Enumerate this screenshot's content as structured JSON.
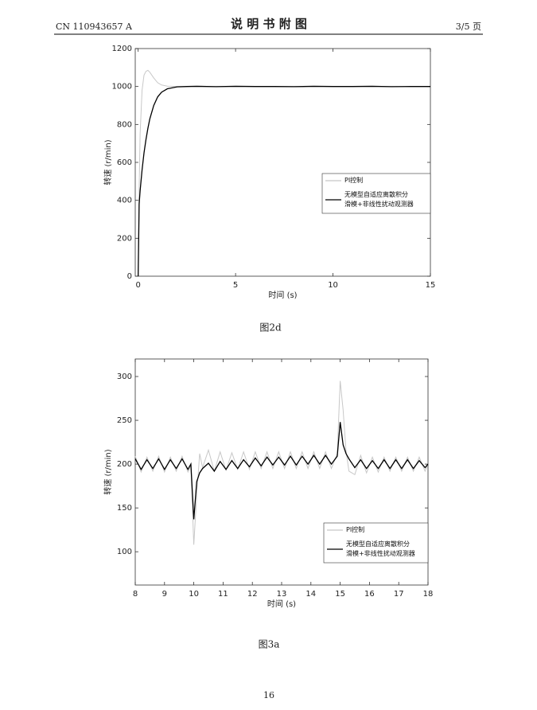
{
  "header": {
    "number": "CN 110943657 A",
    "title": "说 明 书 附 图",
    "page": "3/5 页"
  },
  "chart_data": [
    {
      "type": "line",
      "xlabel": "时间 (s)",
      "ylabel": "转速 (r/min)",
      "x": [
        0,
        0.05,
        0.1,
        0.2,
        0.3,
        0.4,
        0.5,
        0.6,
        0.8,
        1,
        1.2,
        1.5,
        2,
        2.5,
        3,
        4,
        5,
        6,
        7,
        8,
        9,
        10,
        11,
        12,
        13,
        14,
        15
      ],
      "series": [
        {
          "name": "PI控制",
          "color": "#c8c8c8",
          "values": [
            0,
            450,
            750,
            980,
            1060,
            1080,
            1085,
            1075,
            1045,
            1020,
            1008,
            1002,
            1000,
            1000,
            1000,
            1000,
            1000,
            1000,
            1000,
            1000,
            1000,
            1000,
            1000,
            1000,
            1000,
            1000,
            1000
          ]
        },
        {
          "name": "无模型自适应离散积分\n滑模+非线性扰动观测器",
          "color": "#000000",
          "values": [
            0,
            380,
            450,
            560,
            650,
            720,
            780,
            830,
            900,
            945,
            970,
            988,
            998,
            1000,
            1001,
            999,
            1001,
            1000,
            1000,
            999,
            1001,
            1000,
            1000,
            1001,
            999,
            1000,
            1000
          ]
        }
      ],
      "xlim": [
        -0.15,
        15
      ],
      "xticks": [
        0,
        5,
        10,
        15
      ],
      "ylim": [
        0,
        1200
      ],
      "yticks": [
        0,
        200,
        400,
        600,
        800,
        1000,
        1200
      ],
      "legend": "right"
    },
    {
      "type": "line",
      "xlabel": "时间 (s)",
      "ylabel": "转速 (r/min)",
      "x": [
        8,
        8.2,
        8.4,
        8.6,
        8.8,
        9,
        9.2,
        9.4,
        9.6,
        9.8,
        9.9,
        10,
        10.1,
        10.2,
        10.3,
        10.5,
        10.7,
        10.9,
        11.1,
        11.3,
        11.5,
        11.7,
        11.9,
        12.1,
        12.3,
        12.5,
        12.7,
        12.9,
        13.1,
        13.3,
        13.5,
        13.7,
        13.9,
        14.1,
        14.3,
        14.5,
        14.7,
        14.9,
        15,
        15.1,
        15.2,
        15.3,
        15.5,
        15.7,
        15.9,
        16.1,
        16.3,
        16.5,
        16.7,
        16.9,
        17.1,
        17.3,
        17.5,
        17.7,
        17.9,
        18
      ],
      "series": [
        {
          "name": "PI控制",
          "color": "#c8c8c8",
          "values": [
            209,
            191,
            208,
            192,
            209,
            191,
            208,
            192,
            209,
            191,
            198,
            108,
            165,
            212,
            196,
            216,
            192,
            214,
            193,
            213,
            194,
            214,
            194,
            214,
            195,
            214,
            195,
            214,
            195,
            214,
            195,
            214,
            195,
            214,
            195,
            214,
            195,
            212,
            295,
            262,
            215,
            192,
            188,
            210,
            190,
            208,
            191,
            208,
            192,
            208,
            192,
            208,
            192,
            208,
            192,
            200
          ]
        },
        {
          "name": "无模型自适应离散积分\n滑模+非线性扰动观测器",
          "color": "#000000",
          "values": [
            206,
            194,
            205,
            195,
            206,
            194,
            205,
            195,
            206,
            194,
            200,
            137,
            180,
            190,
            195,
            201,
            192,
            203,
            194,
            204,
            195,
            205,
            197,
            207,
            198,
            208,
            199,
            208,
            199,
            209,
            199,
            209,
            200,
            210,
            200,
            210,
            200,
            209,
            248,
            222,
            212,
            206,
            196,
            205,
            195,
            204,
            195,
            205,
            195,
            205,
            195,
            205,
            195,
            204,
            196,
            200
          ]
        }
      ],
      "xlim": [
        8,
        18
      ],
      "xticks": [
        8,
        9,
        10,
        11,
        12,
        13,
        14,
        15,
        16,
        17,
        18
      ],
      "ylim": [
        62,
        320
      ],
      "yticks": [
        100,
        150,
        200,
        250,
        300
      ],
      "legend": "right"
    }
  ],
  "captions": [
    "图2d",
    "图3a"
  ],
  "page_number": "16"
}
